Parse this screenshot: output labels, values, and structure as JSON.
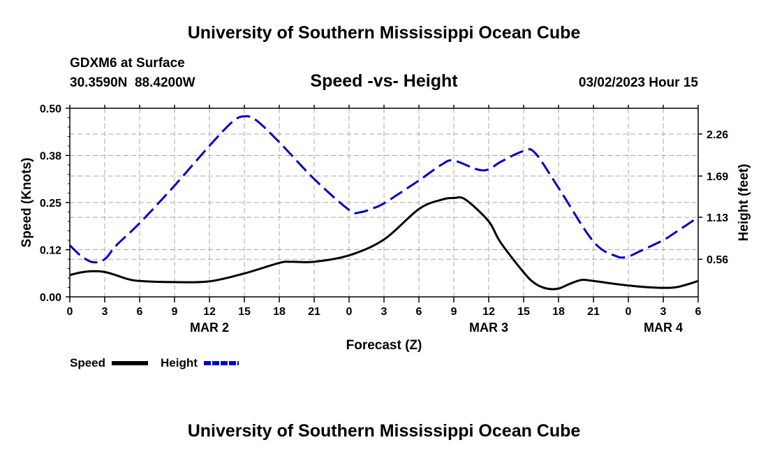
{
  "header": {
    "title": "University of Southern Mississippi Ocean Cube",
    "station": "GDXM6 at Surface",
    "coordinates": "30.3590N  88.4200W",
    "plot_title": "Speed -vs- Height",
    "timestamp": "03/02/2023 Hour 15"
  },
  "footer": {
    "title": "University of Southern Mississippi Ocean Cube"
  },
  "chart_data": {
    "type": "line",
    "title": "Speed -vs- Height",
    "xlabel": "Forecast (Z)",
    "ylabel_left": "Speed (Knots)",
    "ylabel_right": "Height (feet)",
    "x_range": [
      0,
      54
    ],
    "x_tick_values": [
      0,
      3,
      6,
      9,
      12,
      15,
      18,
      21,
      24,
      27,
      30,
      33,
      36,
      39,
      42,
      45,
      48,
      51,
      54
    ],
    "x_tick_labels": [
      "0",
      "3",
      "6",
      "9",
      "12",
      "15",
      "18",
      "21",
      "0",
      "3",
      "6",
      "9",
      "12",
      "15",
      "18",
      "21",
      "0",
      "3",
      "6"
    ],
    "day_labels": [
      {
        "x": 12,
        "label": "MAR 2"
      },
      {
        "x": 36,
        "label": "MAR 3"
      },
      {
        "x": 51,
        "label": "MAR 4"
      }
    ],
    "y_left": {
      "range": [
        0,
        0.5
      ],
      "ticks": [
        0.0,
        0.125,
        0.25,
        0.375,
        0.5
      ],
      "tick_labels": [
        "0.00",
        "0.12",
        "0.25",
        "0.38",
        "0.50"
      ]
    },
    "y_right": {
      "range": [
        0.05,
        2.61
      ],
      "ticks": [
        0.56,
        1.13,
        1.69,
        2.26
      ],
      "tick_labels": [
        "0.56",
        "1.13",
        "1.69",
        "2.26"
      ]
    },
    "grid": true,
    "legend": [
      {
        "name": "Speed",
        "color": "#000000",
        "dash": "solid"
      },
      {
        "name": "Height",
        "color": "#0000cc",
        "dash": "dashed"
      }
    ],
    "series": [
      {
        "name": "Speed",
        "axis": "left",
        "color": "#000000",
        "x": [
          0,
          1,
          2,
          3,
          4,
          5,
          6,
          9,
          12,
          15,
          18,
          19,
          21,
          24,
          27,
          30,
          32,
          33,
          34,
          36,
          37,
          39,
          40,
          41,
          42,
          43,
          44,
          45,
          48,
          50,
          52,
          54
        ],
        "values": [
          0.058,
          0.065,
          0.068,
          0.066,
          0.057,
          0.047,
          0.042,
          0.039,
          0.041,
          0.062,
          0.09,
          0.093,
          0.093,
          0.11,
          0.152,
          0.233,
          0.258,
          0.262,
          0.258,
          0.2,
          0.145,
          0.065,
          0.035,
          0.022,
          0.022,
          0.035,
          0.045,
          0.042,
          0.03,
          0.025,
          0.025,
          0.042
        ]
      },
      {
        "name": "Height",
        "axis": "right",
        "color": "#0000cc",
        "x": [
          0,
          1,
          2,
          3,
          4,
          6,
          9,
          12,
          14,
          15,
          16,
          18,
          21,
          24,
          25,
          26,
          27,
          30,
          32,
          33,
          35,
          36,
          37,
          39,
          40,
          42,
          45,
          47,
          48,
          49,
          51,
          52,
          54
        ],
        "values": [
          0.75,
          0.6,
          0.52,
          0.56,
          0.75,
          1.05,
          1.56,
          2.1,
          2.43,
          2.5,
          2.45,
          2.15,
          1.65,
          1.23,
          1.2,
          1.25,
          1.32,
          1.63,
          1.85,
          1.9,
          1.78,
          1.78,
          1.88,
          2.03,
          2.0,
          1.53,
          0.8,
          0.6,
          0.6,
          0.67,
          0.82,
          0.92,
          1.13
        ]
      }
    ]
  }
}
